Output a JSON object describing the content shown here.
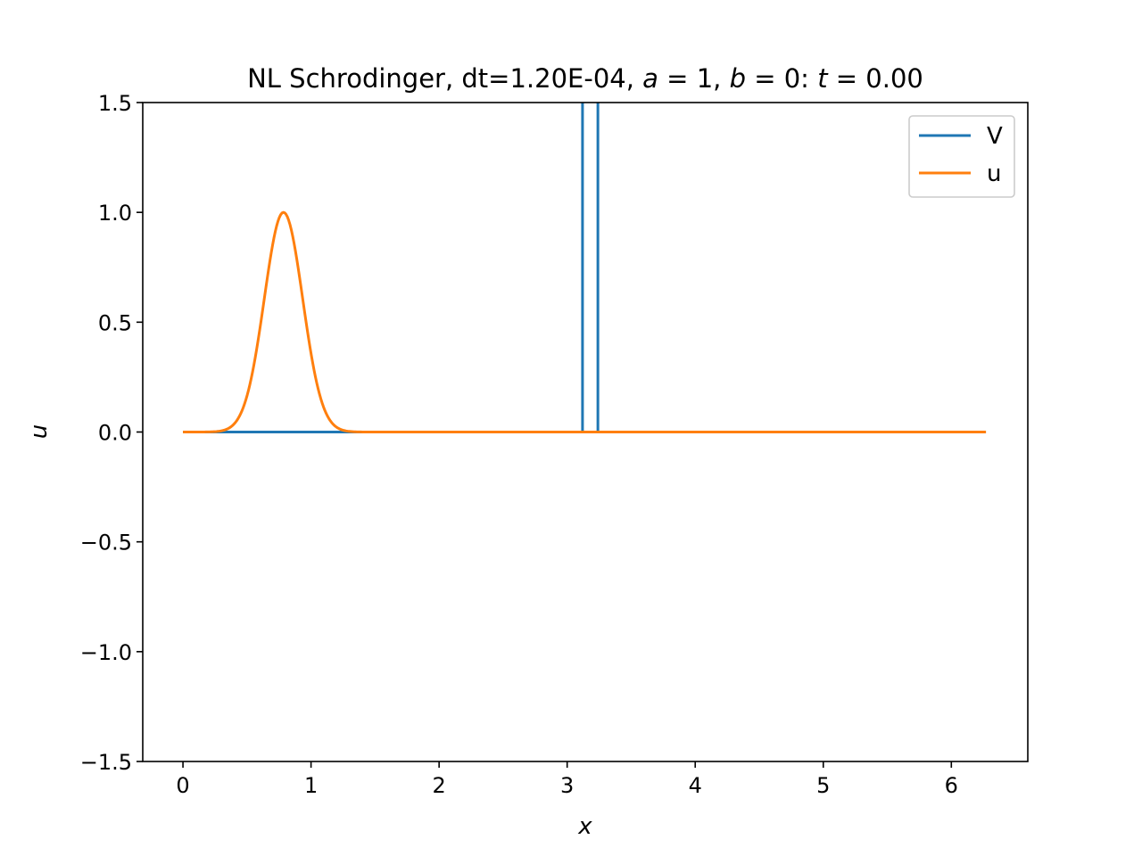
{
  "chart_data": {
    "type": "line",
    "title_parts": [
      {
        "text": "NL Schrodinger, dt=1.20E-04, ",
        "italic": false
      },
      {
        "text": "a",
        "italic": true
      },
      {
        "text": " = 1, ",
        "italic": false
      },
      {
        "text": "b",
        "italic": true
      },
      {
        "text": " = 0: ",
        "italic": false
      },
      {
        "text": "t",
        "italic": true
      },
      {
        "text": " = 0.00",
        "italic": false
      }
    ],
    "xlabel": "x",
    "ylabel": "u",
    "xlim": [
      -0.314,
      6.597
    ],
    "ylim": [
      -1.5,
      1.5
    ],
    "xticks": [
      0,
      1,
      2,
      3,
      4,
      5,
      6
    ],
    "xtick_labels": [
      "0",
      "1",
      "2",
      "3",
      "4",
      "5",
      "6"
    ],
    "yticks": [
      -1.5,
      -1.0,
      -0.5,
      0.0,
      0.5,
      1.0,
      1.5
    ],
    "ytick_labels": [
      "−1.5",
      "−1.0",
      "−0.5",
      "0.0",
      "0.5",
      "1.0",
      "1.5"
    ],
    "grid": false,
    "legend_position": "top-right",
    "series": [
      {
        "name": "V",
        "color": "#1f77b4",
        "kind": "barrier",
        "x_range": [
          0,
          6.27
        ],
        "barrier_x": [
          3.12,
          3.24
        ],
        "barrier_height": 1000
      },
      {
        "name": "u",
        "color": "#ff7f0e",
        "kind": "gaussian",
        "x_range": [
          0,
          6.27
        ],
        "amplitude": 1.0,
        "center": 0.785,
        "width": 0.15
      }
    ]
  }
}
